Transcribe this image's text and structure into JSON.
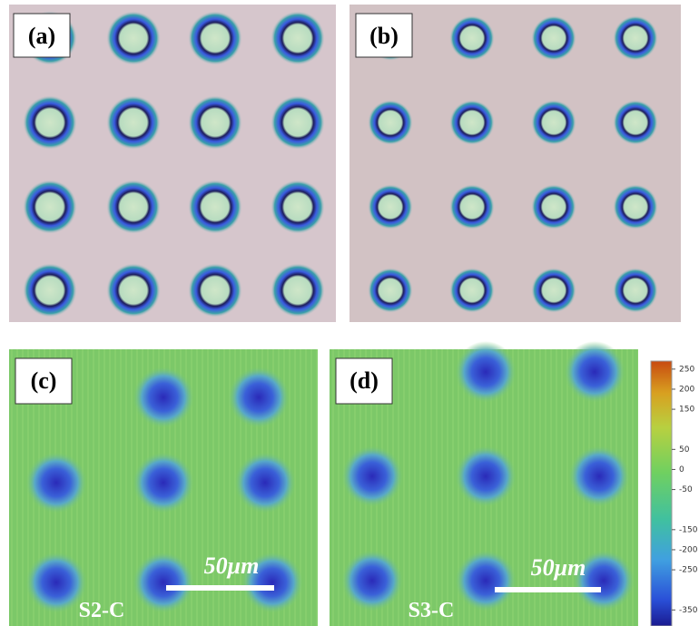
{
  "panels": [
    {
      "label": "(a)"
    },
    {
      "label": "(b)"
    },
    {
      "label": "(c)",
      "scale_bar": "50μm",
      "sample": "S2-C"
    },
    {
      "label": "(d)",
      "scale_bar": "50μm",
      "sample": "S3-C"
    }
  ],
  "colorbar": {
    "lim": [
      -390,
      270
    ],
    "ticks": [
      250,
      200,
      150,
      50,
      0,
      -50,
      -150,
      -200,
      -250,
      -350
    ]
  }
}
